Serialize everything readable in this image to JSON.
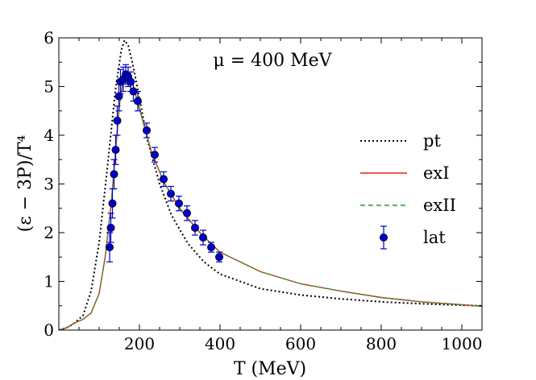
{
  "chart_data": {
    "type": "line",
    "annotation": "μ = 400 MeV",
    "xlabel": "T (MeV)",
    "ylabel": "(ε − 3P)/T⁴",
    "xlim": [
      0,
      1050
    ],
    "ylim": [
      0,
      6
    ],
    "x_ticks": [
      200,
      400,
      600,
      800,
      1000
    ],
    "x_tick_labels": [
      "200",
      "400",
      "600",
      "800",
      "1000"
    ],
    "y_ticks": [
      0,
      1,
      2,
      3,
      4,
      5,
      6
    ],
    "y_tick_labels": [
      "0",
      "1",
      "2",
      "3",
      "4",
      "5",
      "6"
    ],
    "grid": false,
    "legend_position": "right",
    "series": [
      {
        "name": "pt",
        "style": "dotted",
        "color": "#000000",
        "points": [
          [
            0,
            0
          ],
          [
            20,
            0.05
          ],
          [
            40,
            0.15
          ],
          [
            60,
            0.3
          ],
          [
            80,
            0.8
          ],
          [
            100,
            1.8
          ],
          [
            120,
            3.3
          ],
          [
            140,
            4.9
          ],
          [
            155,
            5.75
          ],
          [
            163,
            5.95
          ],
          [
            172,
            5.85
          ],
          [
            185,
            5.4
          ],
          [
            200,
            4.75
          ],
          [
            220,
            3.9
          ],
          [
            250,
            3.0
          ],
          [
            280,
            2.35
          ],
          [
            320,
            1.78
          ],
          [
            360,
            1.4
          ],
          [
            400,
            1.15
          ],
          [
            500,
            0.85
          ],
          [
            600,
            0.72
          ],
          [
            700,
            0.64
          ],
          [
            800,
            0.58
          ],
          [
            900,
            0.54
          ],
          [
            1000,
            0.51
          ],
          [
            1050,
            0.5
          ]
        ]
      },
      {
        "name": "exI",
        "style": "solid",
        "color": "#e0201b",
        "points": [
          [
            0,
            0
          ],
          [
            20,
            0.05
          ],
          [
            40,
            0.15
          ],
          [
            60,
            0.22
          ],
          [
            80,
            0.35
          ],
          [
            100,
            0.75
          ],
          [
            115,
            1.5
          ],
          [
            130,
            2.6
          ],
          [
            140,
            3.6
          ],
          [
            150,
            4.6
          ],
          [
            160,
            5.15
          ],
          [
            170,
            5.28
          ],
          [
            180,
            5.15
          ],
          [
            195,
            4.7
          ],
          [
            210,
            4.25
          ],
          [
            230,
            3.65
          ],
          [
            260,
            3.05
          ],
          [
            300,
            2.5
          ],
          [
            350,
            2.0
          ],
          [
            400,
            1.6
          ],
          [
            500,
            1.2
          ],
          [
            600,
            0.95
          ],
          [
            700,
            0.8
          ],
          [
            800,
            0.67
          ],
          [
            900,
            0.58
          ],
          [
            1000,
            0.52
          ],
          [
            1050,
            0.49
          ]
        ]
      },
      {
        "name": "exII",
        "style": "dashed",
        "color": "#2a9a2a",
        "points": [
          [
            0,
            0
          ],
          [
            20,
            0.05
          ],
          [
            40,
            0.15
          ],
          [
            60,
            0.22
          ],
          [
            80,
            0.35
          ],
          [
            100,
            0.75
          ],
          [
            115,
            1.5
          ],
          [
            130,
            2.6
          ],
          [
            140,
            3.6
          ],
          [
            150,
            4.6
          ],
          [
            160,
            5.15
          ],
          [
            170,
            5.28
          ],
          [
            180,
            5.15
          ],
          [
            195,
            4.7
          ],
          [
            210,
            4.25
          ],
          [
            230,
            3.65
          ],
          [
            260,
            3.05
          ],
          [
            300,
            2.5
          ],
          [
            350,
            2.0
          ],
          [
            400,
            1.6
          ],
          [
            500,
            1.2
          ],
          [
            600,
            0.95
          ],
          [
            700,
            0.8
          ],
          [
            800,
            0.67
          ],
          [
            900,
            0.58
          ],
          [
            1000,
            0.52
          ],
          [
            1050,
            0.49
          ]
        ]
      },
      {
        "name": "lat",
        "style": "markers-errorbars",
        "color": "#0000cc",
        "points": [
          {
            "x": 126,
            "y": 1.7,
            "err": 0.3
          },
          {
            "x": 129,
            "y": 2.1,
            "err": 0.3
          },
          {
            "x": 133,
            "y": 2.6,
            "err": 0.3
          },
          {
            "x": 137,
            "y": 3.2,
            "err": 0.3
          },
          {
            "x": 141,
            "y": 3.7,
            "err": 0.3
          },
          {
            "x": 145,
            "y": 4.3,
            "err": 0.3
          },
          {
            "x": 149,
            "y": 4.8,
            "err": 0.3
          },
          {
            "x": 153,
            "y": 5.1,
            "err": 0.25
          },
          {
            "x": 160,
            "y": 5.15,
            "err": 0.25
          },
          {
            "x": 166,
            "y": 5.25,
            "err": 0.2
          },
          {
            "x": 172,
            "y": 5.2,
            "err": 0.2
          },
          {
            "x": 178,
            "y": 5.1,
            "err": 0.2
          },
          {
            "x": 185,
            "y": 4.9,
            "err": 0.2
          },
          {
            "x": 196,
            "y": 4.7,
            "err": 0.2
          },
          {
            "x": 218,
            "y": 4.1,
            "err": 0.15
          },
          {
            "x": 238,
            "y": 3.6,
            "err": 0.15
          },
          {
            "x": 260,
            "y": 3.1,
            "err": 0.15
          },
          {
            "x": 278,
            "y": 2.8,
            "err": 0.15
          },
          {
            "x": 298,
            "y": 2.6,
            "err": 0.15
          },
          {
            "x": 318,
            "y": 2.4,
            "err": 0.15
          },
          {
            "x": 338,
            "y": 2.1,
            "err": 0.15
          },
          {
            "x": 358,
            "y": 1.9,
            "err": 0.15
          },
          {
            "x": 378,
            "y": 1.7,
            "err": 0.1
          },
          {
            "x": 398,
            "y": 1.5,
            "err": 0.1
          }
        ]
      }
    ]
  }
}
